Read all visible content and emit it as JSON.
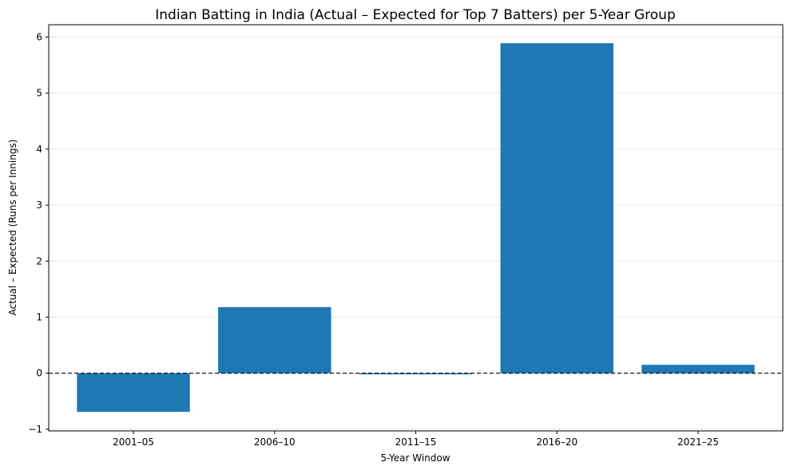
{
  "chart_data": {
    "type": "bar",
    "title": "Indian Batting in India (Actual – Expected for Top 7 Batters) per 5-Year Group",
    "xlabel": "5-Year Window",
    "ylabel": "Actual – Expected (Runs per Innings)",
    "categories": [
      "2001–05",
      "2006–10",
      "2011–15",
      "2016–20",
      "2021–25"
    ],
    "values": [
      -0.69,
      1.18,
      -0.02,
      5.89,
      0.15
    ],
    "ylim": [
      -1.03,
      6.22
    ],
    "yticks": [
      -1,
      0,
      1,
      2,
      3,
      4,
      5,
      6
    ],
    "grid": "y",
    "reference_line": {
      "y": 0,
      "style": "dashed",
      "color": "#000000"
    },
    "bar_color": "#1f77b4"
  }
}
